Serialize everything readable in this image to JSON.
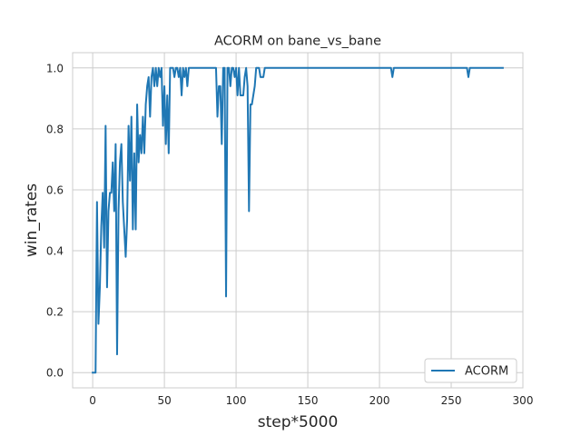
{
  "chart_data": {
    "type": "line",
    "title": "ACORM on bane_vs_bane",
    "xlabel": "step*5000",
    "ylabel": "win_rates",
    "xlim": [
      -14,
      300
    ],
    "ylim": [
      -0.05,
      1.05
    ],
    "x_ticks": [
      0,
      50,
      100,
      150,
      200,
      250,
      300
    ],
    "y_ticks": [
      0.0,
      0.2,
      0.4,
      0.6,
      0.8,
      1.0
    ],
    "x_tick_labels": [
      "0",
      "50",
      "100",
      "150",
      "200",
      "250",
      "300"
    ],
    "y_tick_labels": [
      "0.0",
      "0.2",
      "0.4",
      "0.6",
      "0.8",
      "1.0"
    ],
    "grid": true,
    "legend_position": "lower-right",
    "color": "#1f77b4",
    "series": [
      {
        "name": "ACORM",
        "points": [
          [
            0,
            0.0
          ],
          [
            1,
            0.0
          ],
          [
            2,
            0.0
          ],
          [
            3,
            0.56
          ],
          [
            4,
            0.16
          ],
          [
            5,
            0.28
          ],
          [
            6,
            0.48
          ],
          [
            7,
            0.59
          ],
          [
            8,
            0.41
          ],
          [
            9,
            0.81
          ],
          [
            10,
            0.28
          ],
          [
            11,
            0.53
          ],
          [
            12,
            0.59
          ],
          [
            13,
            0.59
          ],
          [
            14,
            0.69
          ],
          [
            15,
            0.53
          ],
          [
            16,
            0.75
          ],
          [
            17,
            0.06
          ],
          [
            18,
            0.53
          ],
          [
            19,
            0.69
          ],
          [
            20,
            0.75
          ],
          [
            21,
            0.56
          ],
          [
            22,
            0.47
          ],
          [
            23,
            0.38
          ],
          [
            24,
            0.5
          ],
          [
            25,
            0.81
          ],
          [
            26,
            0.63
          ],
          [
            27,
            0.84
          ],
          [
            28,
            0.47
          ],
          [
            29,
            0.72
          ],
          [
            30,
            0.47
          ],
          [
            31,
            0.88
          ],
          [
            32,
            0.69
          ],
          [
            33,
            0.78
          ],
          [
            34,
            0.72
          ],
          [
            35,
            0.84
          ],
          [
            36,
            0.72
          ],
          [
            37,
            0.88
          ],
          [
            38,
            0.94
          ],
          [
            39,
            0.97
          ],
          [
            40,
            0.84
          ],
          [
            41,
            0.97
          ],
          [
            42,
            1.0
          ],
          [
            43,
            0.94
          ],
          [
            44,
            1.0
          ],
          [
            45,
            0.94
          ],
          [
            46,
            1.0
          ],
          [
            47,
            0.97
          ],
          [
            48,
            1.0
          ],
          [
            49,
            0.81
          ],
          [
            50,
            0.94
          ],
          [
            51,
            0.75
          ],
          [
            52,
            0.91
          ],
          [
            53,
            0.72
          ],
          [
            54,
            1.0
          ],
          [
            55,
            1.0
          ],
          [
            56,
            1.0
          ],
          [
            57,
            0.97
          ],
          [
            58,
            1.0
          ],
          [
            59,
            1.0
          ],
          [
            60,
            0.97
          ],
          [
            61,
            1.0
          ],
          [
            62,
            0.91
          ],
          [
            63,
            1.0
          ],
          [
            64,
            0.97
          ],
          [
            65,
            1.0
          ],
          [
            66,
            0.94
          ],
          [
            67,
            1.0
          ],
          [
            68,
            1.0
          ],
          [
            69,
            1.0
          ],
          [
            70,
            1.0
          ],
          [
            80,
            1.0
          ],
          [
            86,
            1.0
          ],
          [
            87,
            0.84
          ],
          [
            88,
            0.94
          ],
          [
            89,
            0.94
          ],
          [
            90,
            0.75
          ],
          [
            91,
            1.0
          ],
          [
            92,
            1.0
          ],
          [
            93,
            0.25
          ],
          [
            94,
            1.0
          ],
          [
            95,
            1.0
          ],
          [
            96,
            0.94
          ],
          [
            97,
            1.0
          ],
          [
            98,
            1.0
          ],
          [
            99,
            0.97
          ],
          [
            100,
            1.0
          ],
          [
            101,
            0.91
          ],
          [
            102,
            1.0
          ],
          [
            103,
            0.91
          ],
          [
            104,
            0.91
          ],
          [
            105,
            0.91
          ],
          [
            106,
            0.97
          ],
          [
            107,
            1.0
          ],
          [
            108,
            0.94
          ],
          [
            109,
            0.53
          ],
          [
            110,
            0.88
          ],
          [
            111,
            0.88
          ],
          [
            112,
            0.91
          ],
          [
            113,
            0.94
          ],
          [
            114,
            1.0
          ],
          [
            116,
            1.0
          ],
          [
            117,
            0.97
          ],
          [
            118,
            0.97
          ],
          [
            119,
            0.97
          ],
          [
            120,
            1.0
          ],
          [
            140,
            1.0
          ],
          [
            160,
            1.0
          ],
          [
            180,
            1.0
          ],
          [
            200,
            1.0
          ],
          [
            208,
            1.0
          ],
          [
            209,
            0.97
          ],
          [
            210,
            1.0
          ],
          [
            230,
            1.0
          ],
          [
            255,
            1.0
          ],
          [
            261,
            1.0
          ],
          [
            262,
            0.97
          ],
          [
            263,
            1.0
          ],
          [
            280,
            1.0
          ],
          [
            286,
            1.0
          ]
        ]
      }
    ]
  }
}
